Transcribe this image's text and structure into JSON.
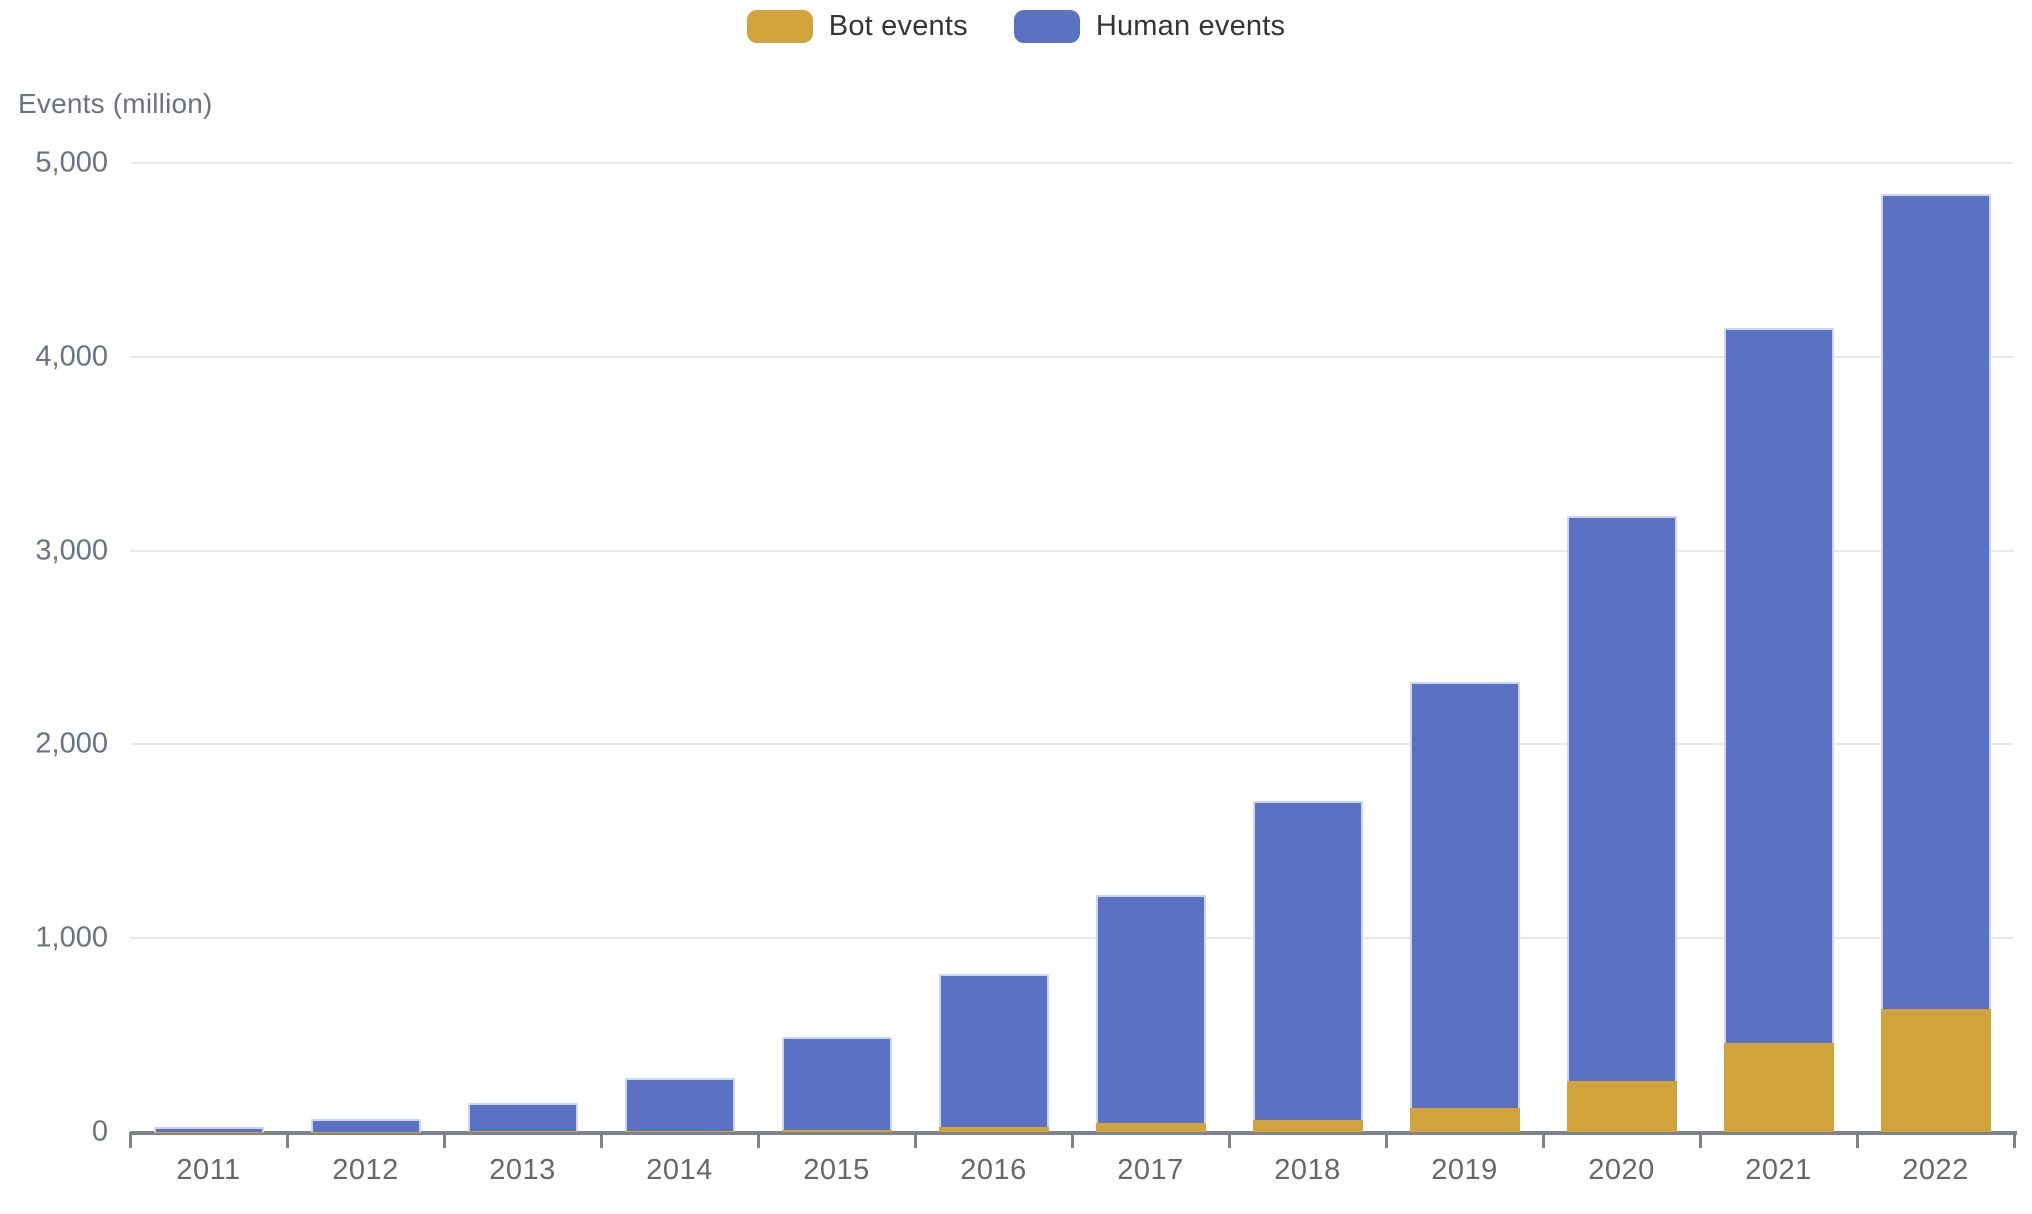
{
  "chart_data": {
    "type": "bar",
    "stacked": true,
    "ylabel": "Events (million)",
    "xlabel": "",
    "categories": [
      "2011",
      "2012",
      "2013",
      "2014",
      "2015",
      "2016",
      "2017",
      "2018",
      "2019",
      "2020",
      "2021",
      "2022"
    ],
    "series": [
      {
        "name": "Bot events",
        "color": "#d1a33b",
        "values": [
          1,
          2,
          3,
          6,
          12,
          25,
          46,
          62,
          125,
          262,
          457,
          637
        ]
      },
      {
        "name": "Human events",
        "color": "#5a71c4",
        "values": [
          24,
          65,
          147,
          274,
          478,
          790,
          1179,
          1648,
          2195,
          2918,
          3693,
          4203
        ]
      }
    ],
    "totals": [
      25,
      67,
      150,
      280,
      490,
      815,
      1225,
      1710,
      2320,
      3180,
      4150,
      4840
    ],
    "ylim": [
      0,
      5000
    ],
    "yticks": [
      {
        "value": 0,
        "label": "0"
      },
      {
        "value": 1000,
        "label": "1,000"
      },
      {
        "value": 2000,
        "label": "2,000"
      },
      {
        "value": 3000,
        "label": "3,000"
      },
      {
        "value": 4000,
        "label": "4,000"
      },
      {
        "value": 5000,
        "label": "5,000"
      }
    ],
    "grid": true,
    "legend_position": "top-center"
  },
  "legend": {
    "items": [
      {
        "label": "Bot events",
        "color": "#d1a33b"
      },
      {
        "label": "Human events",
        "color": "#5a71c4"
      }
    ]
  },
  "colors": {
    "gridline": "#e7eaf6",
    "axis": "#7e838b",
    "tick_label": "#6b7280",
    "bar_outline": "#ccd5f1",
    "background": "#ffffff"
  }
}
